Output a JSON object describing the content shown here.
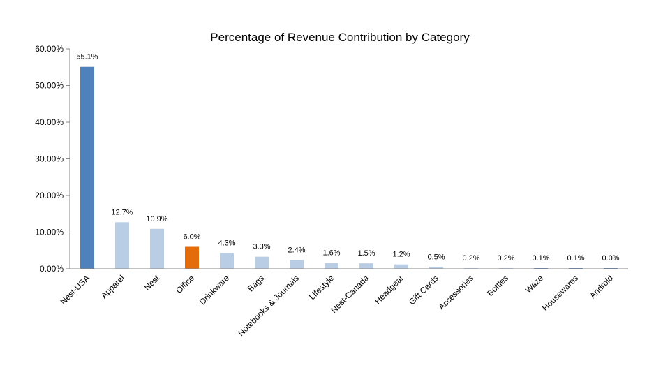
{
  "chart_data": {
    "type": "bar",
    "title": "Percentage of Revenue Contribution by Category",
    "xlabel": "",
    "ylabel": "",
    "ylim": [
      0,
      60
    ],
    "yticks": [
      "0.00%",
      "10.00%",
      "20.00%",
      "30.00%",
      "40.00%",
      "50.00%",
      "60.00%"
    ],
    "grid": false,
    "legend": "none",
    "categories": [
      "Nest-USA",
      "Apparel",
      "Nest",
      "Office",
      "Drinkware",
      "Bags",
      "Notebooks & Journals",
      "Lifestyle",
      "Nest-Canada",
      "Headgear",
      "Gift Cards",
      "Accessories",
      "Bottles",
      "Waze",
      "Housewares",
      "Android"
    ],
    "values": [
      55.1,
      12.7,
      10.9,
      6.0,
      4.3,
      3.3,
      2.4,
      1.6,
      1.5,
      1.2,
      0.5,
      0.2,
      0.2,
      0.1,
      0.1,
      0.0
    ],
    "data_labels": [
      "55.1%",
      "12.7%",
      "10.9%",
      "6.0%",
      "4.3%",
      "3.3%",
      "2.4%",
      "1.6%",
      "1.5%",
      "1.2%",
      "0.5%",
      "0.2%",
      "0.2%",
      "0.1%",
      "0.1%",
      "0.0%"
    ],
    "bar_colors": [
      "#4F81BD",
      "#B9CDE5",
      "#B9CDE5",
      "#E46C0A",
      "#B9CDE5",
      "#B9CDE5",
      "#B9CDE5",
      "#B9CDE5",
      "#B9CDE5",
      "#B9CDE5",
      "#B9CDE5",
      "#B9CDE5",
      "#B9CDE5",
      "#4F81BD",
      "#4F81BD",
      "#4F81BD"
    ],
    "axis_color": "#868686"
  }
}
